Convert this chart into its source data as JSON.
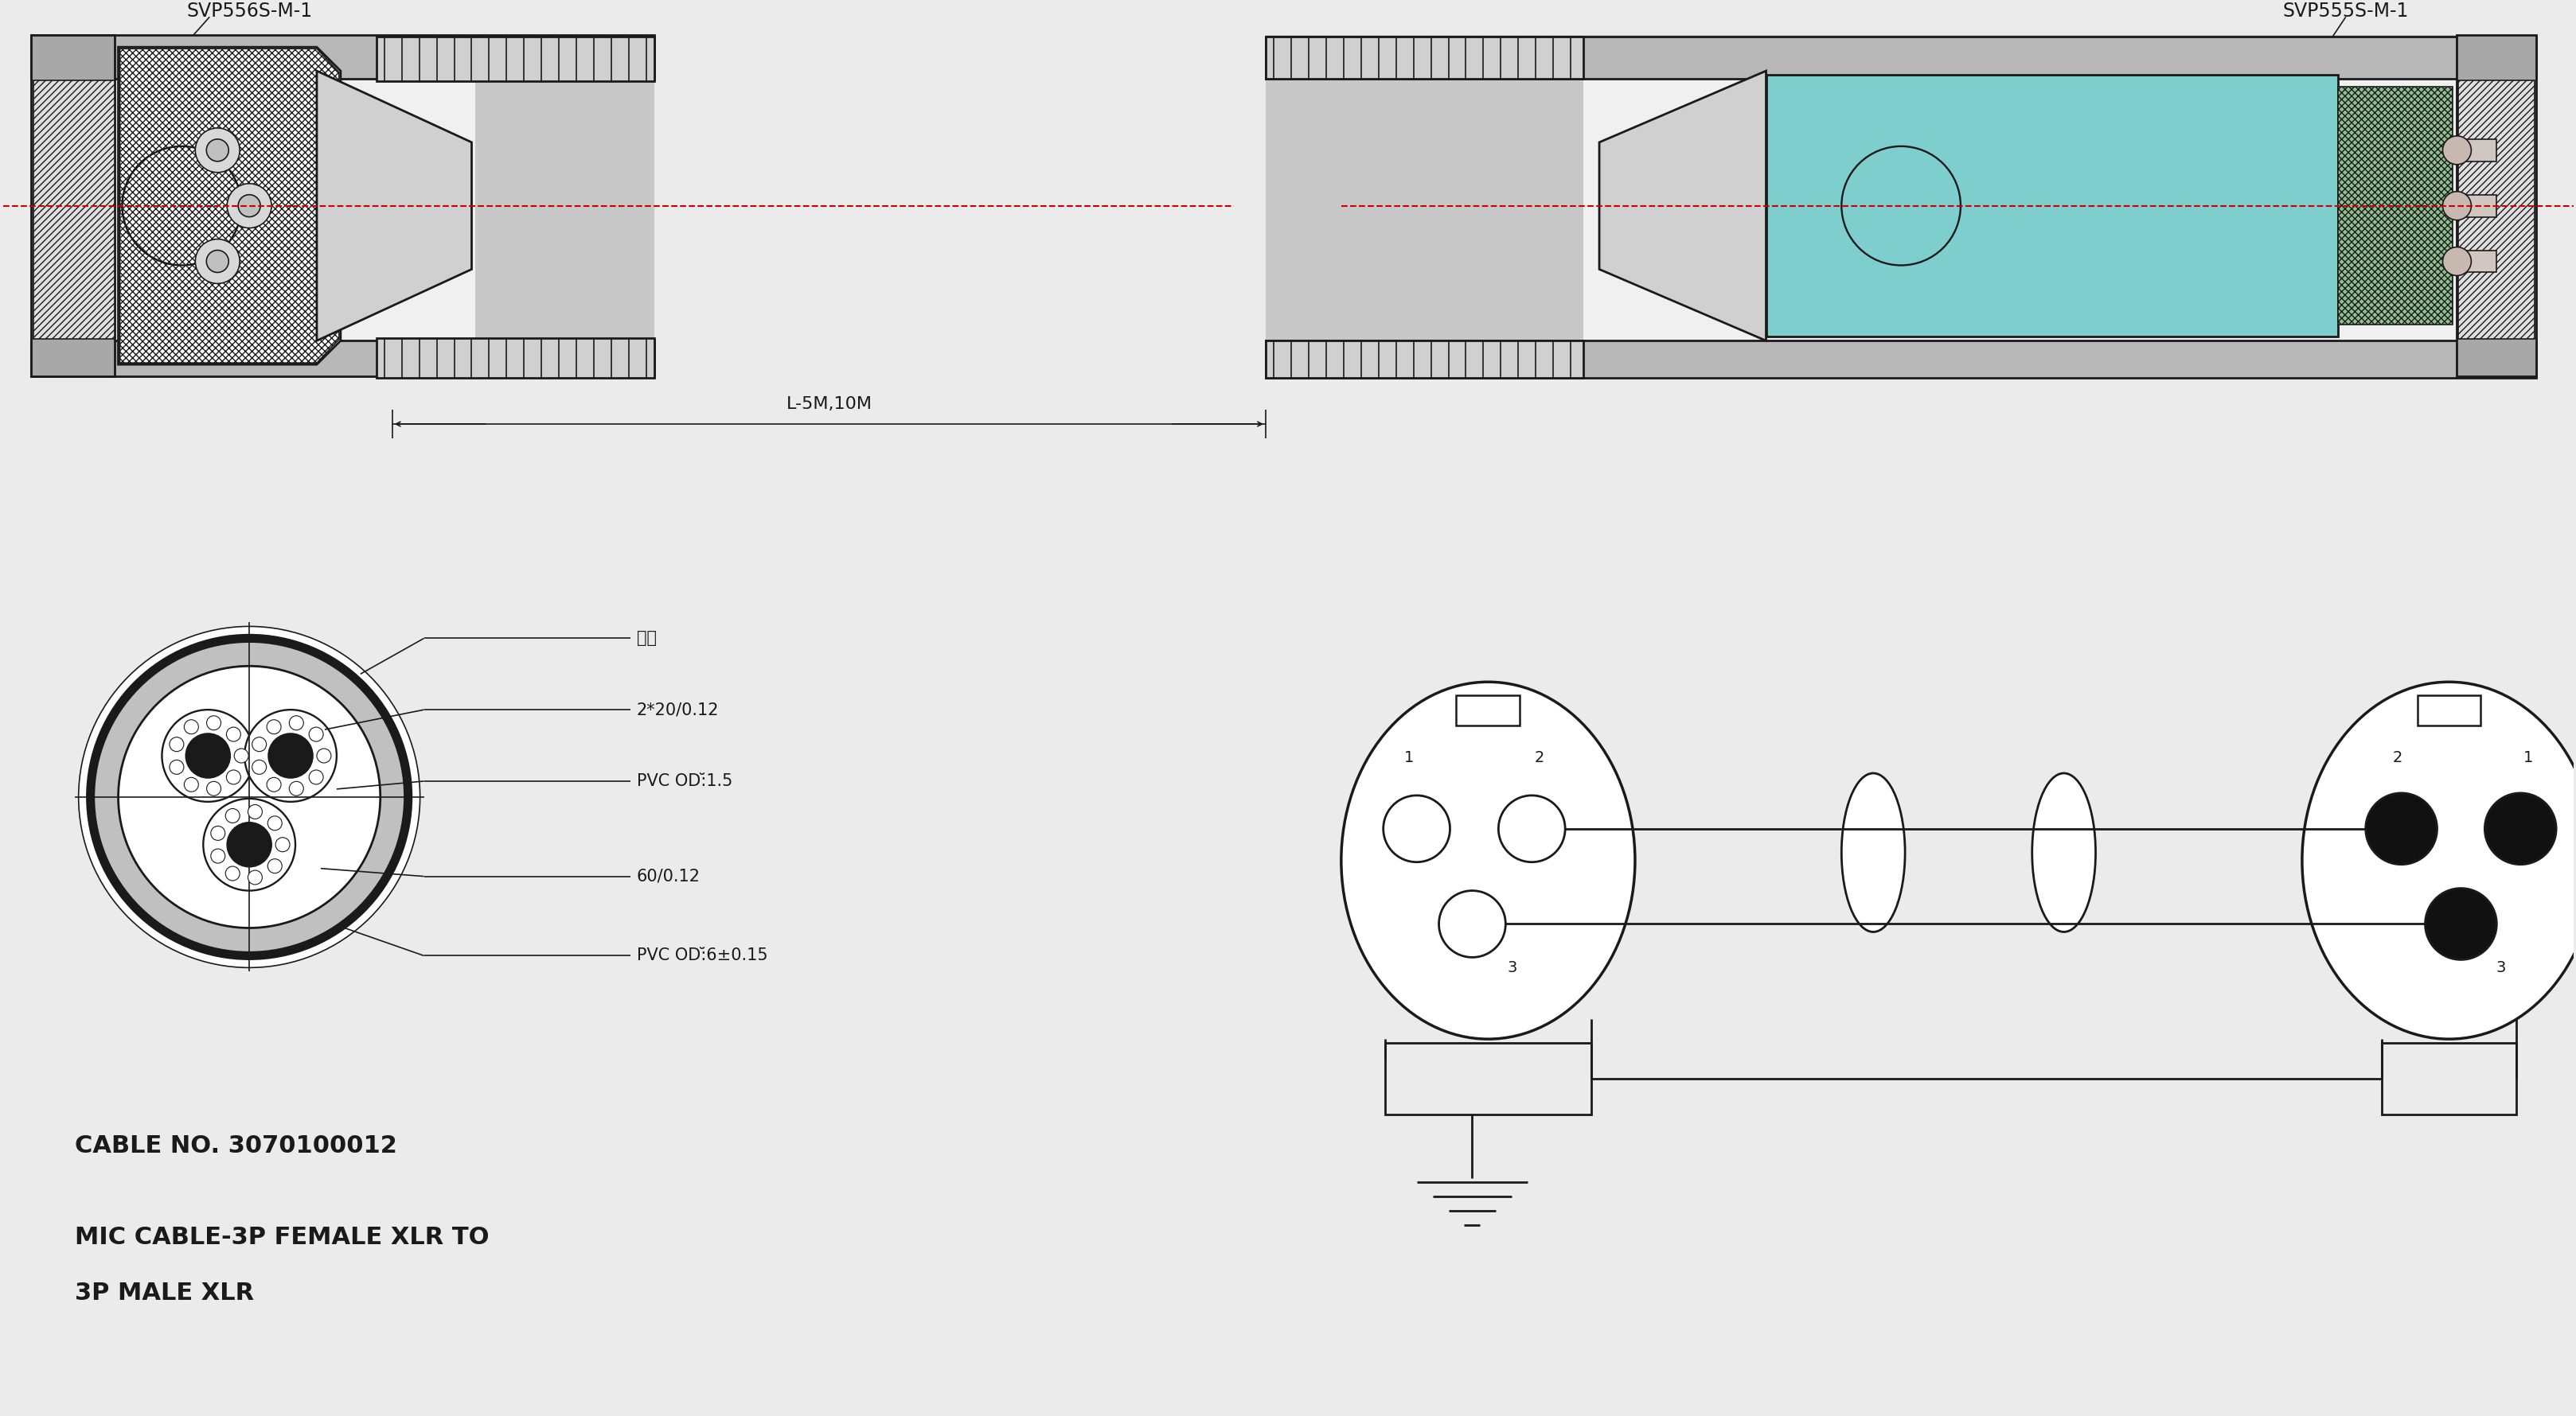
{
  "bg_color": "#ebebeb",
  "line_color": "#1a1a1a",
  "title_label_left": "SVP556S-M-1",
  "title_label_right": "SVP555S-M-1",
  "dimension_label": "L-5M,10M",
  "cable_no": "CABLE NO. 3070100012",
  "description_line1": "MIC CABLE-3P FEMALE XLR TO",
  "description_line2": "3P MALE XLR",
  "annotations": [
    "棉线",
    "2*20/0.12",
    "PVC OD:̆1.5",
    "60/0.12",
    "PVC OD:̆6±0.15"
  ],
  "red_line_color": "#cc0000",
  "cyan_fill": "#7ecece",
  "green_fill": "#90c090",
  "gray_dark": "#888888",
  "gray_mid": "#b0b0b0",
  "gray_light": "#d8d8d8",
  "white": "#ffffff",
  "black": "#111111"
}
